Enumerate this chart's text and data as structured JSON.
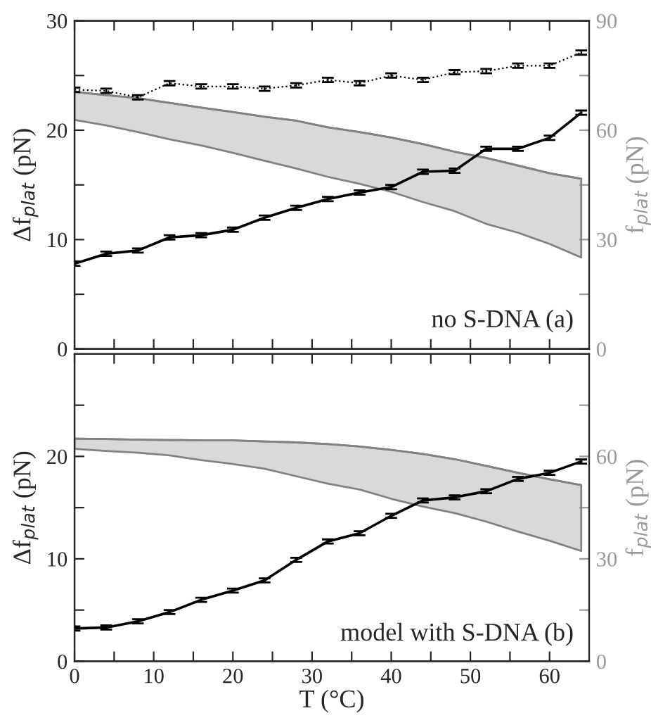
{
  "chart_data": [
    {
      "type": "line",
      "ylabel": "Δf$_{plat}$ (pN)",
      "y2label": "f$_{plat}$ (pN)",
      "annotations": [
        "no S-DNA (a)"
      ],
      "x": [
        0,
        4,
        8,
        12,
        16,
        20,
        24,
        28,
        32,
        36,
        40,
        44,
        48,
        52,
        56,
        60,
        64
      ],
      "xlim": [
        0,
        65
      ],
      "xticks": [
        0,
        {
          "value": 5,
          "label": null
        },
        10,
        {
          "value": 15,
          "label": null
        },
        20,
        {
          "value": 25,
          "label": null
        },
        30,
        {
          "value": 35,
          "label": null
        },
        40,
        {
          "value": 45,
          "label": null
        },
        50,
        {
          "value": 55,
          "label": null
        },
        60
      ],
      "tick_labels": "y",
      "ylim": [
        0,
        30
      ],
      "yticks": [
        0,
        {
          "value": 5,
          "label": null
        },
        10,
        {
          "value": 15,
          "label": null
        },
        20,
        {
          "value": 25,
          "label": null
        },
        30
      ],
      "y2lim": [
        0,
        90
      ],
      "y2ticks": [
        0,
        {
          "value": 15,
          "label": null
        },
        30,
        {
          "value": 45,
          "label": null
        },
        60,
        {
          "value": 75,
          "label": null
        },
        90
      ],
      "series": [
        {
          "axis": "y2",
          "color": "#828282",
          "lower": [
            62.8,
            61.3,
            59.5,
            57.5,
            55.8,
            53.8,
            51.6,
            49.5,
            47.2,
            45.3,
            43.1,
            40.3,
            37.8,
            34.3,
            31.9,
            28.8,
            25.1
          ],
          "values": [
            70.5,
            69.6,
            68.8,
            67.5,
            66.2,
            65.0,
            63.7,
            62.6,
            60.8,
            59.5,
            58.0,
            56.2,
            54.1,
            52.4,
            50.3,
            48.2,
            46.7
          ],
          "upper": [
            70.5,
            69.6,
            68.8,
            67.5,
            66.2,
            65.0,
            63.7,
            62.6,
            60.8,
            59.5,
            58.0,
            56.2,
            54.1,
            52.4,
            50.3,
            48.2,
            46.7
          ]
        },
        {
          "color": "#000000",
          "line_style": "dotted",
          "values": [
            23.7,
            23.6,
            23.0,
            24.3,
            24.0,
            24.0,
            23.8,
            24.1,
            24.6,
            24.3,
            25.0,
            24.6,
            25.3,
            25.4,
            25.9,
            25.9,
            27.1
          ],
          "errors": [
            0.2,
            0.2,
            0.2,
            0.2,
            0.2,
            0.2,
            0.2,
            0.2,
            0.2,
            0.2,
            0.2,
            0.2,
            0.2,
            0.2,
            0.2,
            0.2,
            0.2
          ]
        },
        {
          "color": "#000000",
          "line_style": "solid",
          "values": [
            7.8,
            8.7,
            9.0,
            10.2,
            10.4,
            10.9,
            12.0,
            12.9,
            13.7,
            14.3,
            14.8,
            16.2,
            16.3,
            18.3,
            18.3,
            19.3,
            21.6
          ],
          "errors": [
            0.2,
            0.2,
            0.2,
            0.2,
            0.2,
            0.2,
            0.2,
            0.2,
            0.2,
            0.2,
            0.2,
            0.2,
            0.2,
            0.2,
            0.2,
            0.2,
            0.2
          ]
        }
      ]
    },
    {
      "type": "line",
      "xlabel": "T (°C)",
      "ylabel": "Δf$_{plat}$ (pN)",
      "y2label": "f$_{plat}$ (pN)",
      "annotations": [
        "model with S-DNA (b)"
      ],
      "x": [
        0,
        4,
        8,
        12,
        16,
        20,
        24,
        28,
        32,
        36,
        40,
        44,
        48,
        52,
        56,
        60,
        64
      ],
      "xlim": [
        0,
        65
      ],
      "xticks": [
        0,
        {
          "value": 5,
          "label": null
        },
        10,
        {
          "value": 15,
          "label": null
        },
        20,
        {
          "value": 25,
          "label": null
        },
        30,
        {
          "value": 35,
          "label": null
        },
        40,
        {
          "value": 45,
          "label": null
        },
        50,
        {
          "value": 55,
          "label": null
        },
        60
      ],
      "ylim": [
        0,
        30
      ],
      "yticks": [
        0,
        {
          "value": 5,
          "label": null
        },
        10,
        {
          "value": 15,
          "label": null
        },
        20,
        {
          "value": 25,
          "label": null
        }
      ],
      "y2lim": [
        0,
        90
      ],
      "y2ticks": [
        0,
        {
          "value": 15,
          "label": null
        },
        30,
        {
          "value": 45,
          "label": null
        },
        60,
        {
          "value": 75,
          "label": null
        }
      ],
      "series": [
        {
          "axis": "y2",
          "color": "#828282",
          "lower": [
            62.2,
            61.6,
            61.1,
            60.3,
            58.9,
            57.8,
            56.4,
            54.2,
            52.0,
            50.3,
            47.6,
            45.3,
            43.4,
            40.9,
            38.0,
            35.3,
            32.3
          ],
          "values": [
            65.2,
            65.1,
            64.9,
            64.8,
            64.7,
            64.7,
            64.4,
            64.1,
            63.6,
            62.9,
            61.9,
            60.7,
            59.2,
            57.2,
            55.2,
            53.3,
            51.6
          ],
          "upper": [
            65.2,
            65.1,
            64.9,
            64.8,
            64.7,
            64.7,
            64.4,
            64.1,
            63.6,
            62.9,
            61.9,
            60.7,
            59.2,
            57.2,
            55.2,
            53.3,
            51.6
          ]
        },
        {
          "color": "#000000",
          "line_style": "solid",
          "values": [
            3.2,
            3.3,
            3.9,
            4.8,
            6.0,
            6.9,
            7.9,
            9.9,
            11.7,
            12.5,
            14.2,
            15.7,
            16.0,
            16.6,
            17.8,
            18.4,
            19.5
          ],
          "errors": [
            0.2,
            0.2,
            0.2,
            0.2,
            0.2,
            0.2,
            0.2,
            0.2,
            0.2,
            0.2,
            0.2,
            0.2,
            0.2,
            0.2,
            0.2,
            0.2,
            0.2
          ]
        }
      ]
    }
  ]
}
